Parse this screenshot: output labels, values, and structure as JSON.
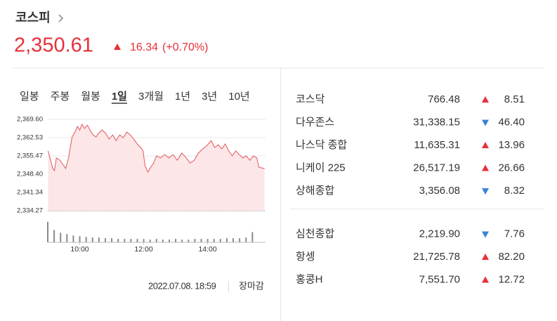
{
  "header": {
    "title": "코스피",
    "value": "2,350.61",
    "direction": "up",
    "change": "16.34",
    "percent": "(+0.70%)"
  },
  "tabs": [
    "일봉",
    "주봉",
    "월봉",
    "1일",
    "3개월",
    "1년",
    "3년",
    "10년"
  ],
  "active_tab": 3,
  "chart_data": {
    "type": "line",
    "color": "#e0565b",
    "fill": "#fde6e7",
    "x": [
      9.01,
      9.1,
      9.16,
      9.21,
      9.27,
      9.38,
      9.49,
      9.56,
      9.65,
      9.76,
      9.85,
      9.93,
      10.0,
      10.07,
      10.15,
      10.24,
      10.33,
      10.42,
      10.51,
      10.59,
      10.7,
      10.81,
      10.92,
      11.03,
      11.14,
      11.25,
      11.36,
      11.47,
      11.58,
      11.69,
      11.8,
      11.91,
      11.98,
      12.04,
      12.13,
      12.22,
      12.31,
      12.4,
      12.53,
      12.66,
      12.79,
      12.92,
      13.05,
      13.19,
      13.32,
      13.45,
      13.58,
      13.71,
      13.85,
      13.98,
      14.11,
      14.22,
      14.33,
      14.44,
      14.55,
      14.66,
      14.77,
      14.88,
      14.99,
      15.1,
      15.21,
      15.32,
      15.43,
      15.54,
      15.6,
      15.78
    ],
    "values": [
      2357.4,
      2353.3,
      2350.6,
      2349.8,
      2354.7,
      2353.8,
      2351.9,
      2350.6,
      2354.7,
      2362.8,
      2364.7,
      2366.9,
      2365.5,
      2367.7,
      2366.1,
      2367.4,
      2365.2,
      2363.6,
      2362.8,
      2364.2,
      2365.5,
      2364.2,
      2362.0,
      2363.6,
      2361.4,
      2363.6,
      2362.5,
      2364.7,
      2363.6,
      2362.0,
      2360.1,
      2358.7,
      2357.4,
      2351.9,
      2349.2,
      2351.1,
      2352.7,
      2355.5,
      2354.7,
      2356.0,
      2354.7,
      2356.0,
      2353.8,
      2356.6,
      2354.9,
      2352.7,
      2353.8,
      2356.6,
      2358.2,
      2359.5,
      2361.4,
      2358.7,
      2359.8,
      2358.2,
      2360.1,
      2357.4,
      2355.5,
      2357.4,
      2356.0,
      2354.7,
      2355.5,
      2353.8,
      2355.5,
      2354.7,
      2351.1,
      2350.6
    ],
    "xlim": [
      9,
      15.81
    ],
    "ylim": [
      2334.27,
      2369.6
    ],
    "yticks": [
      {
        "value": 2369.6,
        "label": "2,369.60"
      },
      {
        "value": 2362.53,
        "label": "2,362.53"
      },
      {
        "value": 2355.47,
        "label": "2,355.47"
      },
      {
        "value": 2348.4,
        "label": "2,348.40"
      },
      {
        "value": 2341.34,
        "label": "2,341.34"
      },
      {
        "value": 2334.27,
        "label": "2,334.27"
      }
    ],
    "xticks": [
      {
        "value": 10,
        "label": "10:00"
      },
      {
        "value": 12,
        "label": "12:00"
      },
      {
        "value": 14,
        "label": "14:00"
      }
    ],
    "grid": true,
    "volume": {
      "color": "#8a8a8a",
      "x": [
        9.0,
        9.2,
        9.4,
        9.6,
        9.8,
        10.0,
        10.2,
        10.4,
        10.6,
        10.8,
        11.0,
        11.2,
        11.4,
        11.6,
        11.8,
        12.0,
        12.2,
        12.4,
        12.6,
        12.8,
        13.0,
        13.2,
        13.4,
        13.6,
        13.8,
        14.0,
        14.2,
        14.4,
        14.6,
        14.8,
        15.0,
        15.2,
        15.4
      ],
      "values": [
        30,
        18,
        14,
        12,
        10,
        9,
        8,
        7,
        7,
        6,
        6,
        5,
        5,
        5,
        5,
        5,
        4,
        5,
        4,
        4,
        5,
        4,
        4,
        5,
        5,
        5,
        5,
        5,
        6,
        6,
        6,
        7,
        15
      ],
      "ylim": [
        0,
        38
      ]
    }
  },
  "footer": {
    "timestamp": "2022.07.08. 18:59",
    "status": "장마감"
  },
  "indices": [
    [
      {
        "name": "코스닥",
        "value": "766.48",
        "direction": "up",
        "change": "8.51"
      },
      {
        "name": "다우존스",
        "value": "31,338.15",
        "direction": "down",
        "change": "46.40"
      },
      {
        "name": "나스닥 종합",
        "value": "11,635.31",
        "direction": "up",
        "change": "13.96"
      },
      {
        "name": "니케이 225",
        "value": "26,517.19",
        "direction": "up",
        "change": "26.66"
      },
      {
        "name": "상해종합",
        "value": "3,356.08",
        "direction": "down",
        "change": "8.32"
      }
    ],
    [
      {
        "name": "심천종합",
        "value": "2,219.90",
        "direction": "down",
        "change": "7.76"
      },
      {
        "name": "항셍",
        "value": "21,725.78",
        "direction": "up",
        "change": "82.20"
      },
      {
        "name": "홍콩H",
        "value": "7,551.70",
        "direction": "up",
        "change": "12.72"
      }
    ]
  ]
}
